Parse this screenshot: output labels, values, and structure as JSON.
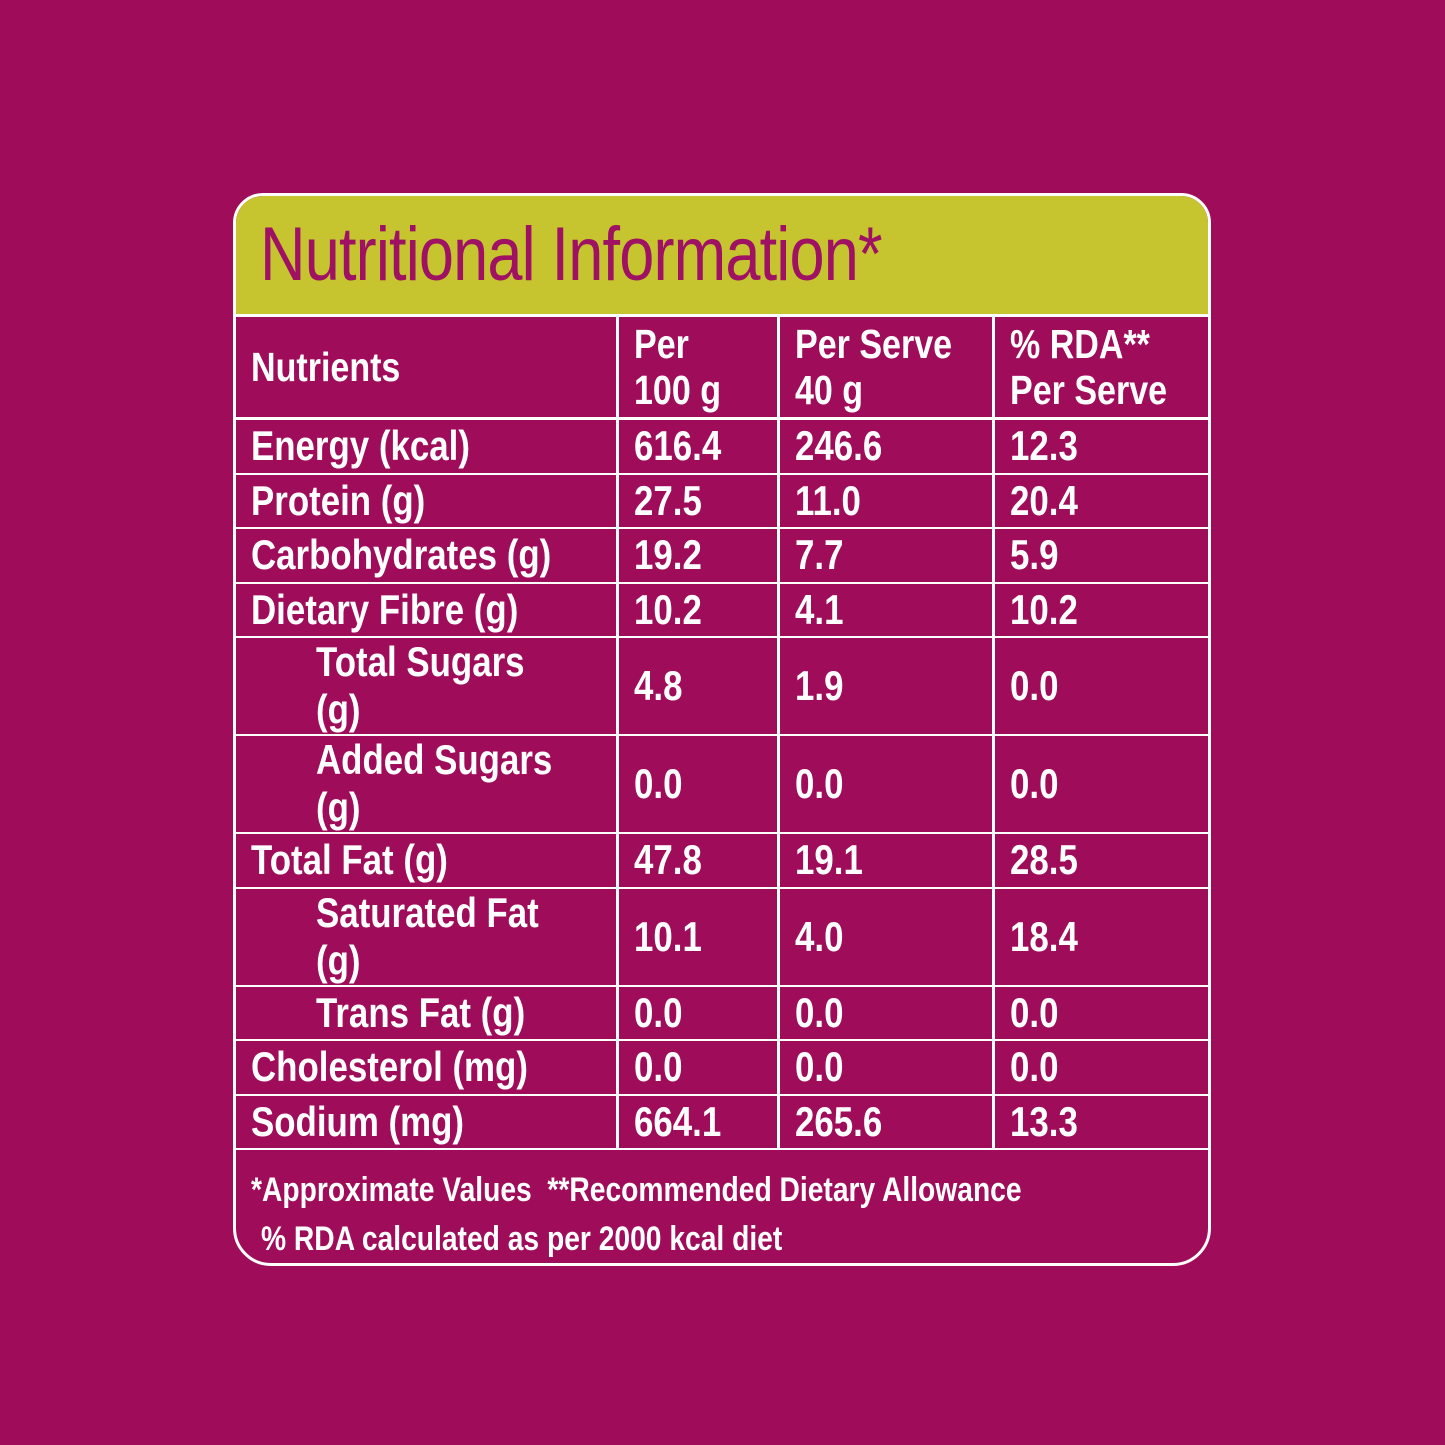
{
  "colors": {
    "background": "#9F0C59",
    "header_band": "#C6C42F",
    "title_text": "#9F1263",
    "table_text": "#FFFFFF",
    "grid_lines": "#FFFFFF"
  },
  "title": "Nutritional Information*",
  "table": {
    "columns": [
      "Nutrients",
      "Per\n100 g",
      "Per Serve\n40 g",
      "% RDA**\nPer Serve"
    ],
    "rows": [
      {
        "label": "Energy (kcal)",
        "indent": false,
        "per_100g": "616.4",
        "per_serve": "246.6",
        "rda_per_serve": "12.3"
      },
      {
        "label": "Protein (g)",
        "indent": false,
        "per_100g": "27.5",
        "per_serve": "11.0",
        "rda_per_serve": "20.4"
      },
      {
        "label": "Carbohydrates (g)",
        "indent": false,
        "per_100g": "19.2",
        "per_serve": "7.7",
        "rda_per_serve": "5.9"
      },
      {
        "label": "Dietary Fibre (g)",
        "indent": false,
        "per_100g": "10.2",
        "per_serve": "4.1",
        "rda_per_serve": "10.2"
      },
      {
        "label": "Total Sugars (g)",
        "indent": true,
        "per_100g": "4.8",
        "per_serve": "1.9",
        "rda_per_serve": "0.0"
      },
      {
        "label": "Added Sugars (g)",
        "indent": true,
        "per_100g": "0.0",
        "per_serve": "0.0",
        "rda_per_serve": "0.0"
      },
      {
        "label": "Total Fat (g)",
        "indent": false,
        "per_100g": "47.8",
        "per_serve": "19.1",
        "rda_per_serve": "28.5"
      },
      {
        "label": "Saturated Fat (g)",
        "indent": true,
        "per_100g": "10.1",
        "per_serve": "4.0",
        "rda_per_serve": "18.4"
      },
      {
        "label": "Trans Fat (g)",
        "indent": true,
        "per_100g": "0.0",
        "per_serve": "0.0",
        "rda_per_serve": "0.0"
      },
      {
        "label": "Cholesterol (mg)",
        "indent": false,
        "per_100g": "0.0",
        "per_serve": "0.0",
        "rda_per_serve": "0.0"
      },
      {
        "label": "Sodium (mg)",
        "indent": false,
        "per_100g": "664.1",
        "per_serve": "265.6",
        "rda_per_serve": "13.3"
      }
    ]
  },
  "footnotes": {
    "line1": "*Approximate Values  **Recommended Dietary Allowance",
    "line2": "% RDA calculated as per 2000 kcal diet"
  }
}
